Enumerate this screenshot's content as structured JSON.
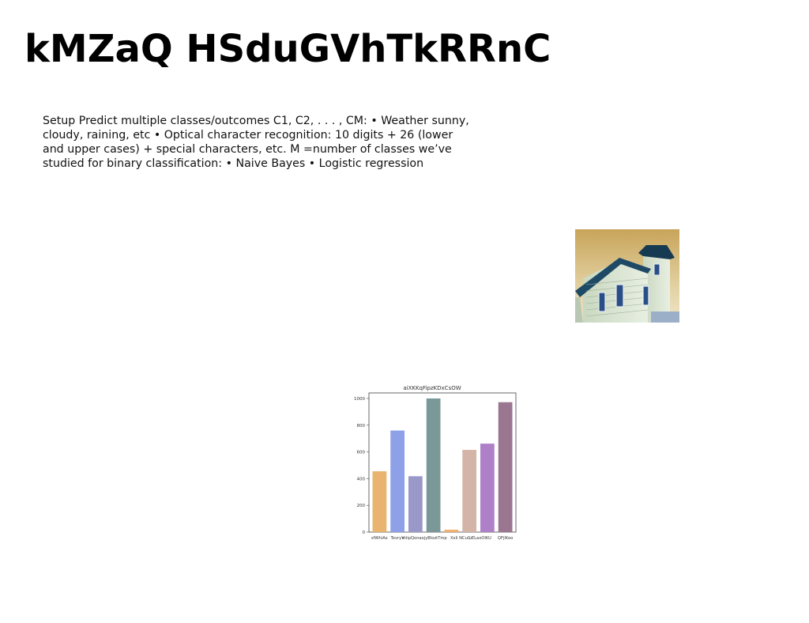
{
  "slide": {
    "title": "kMZaQ HSduGVhTkRRnC",
    "body": "Setup Predict multiple classes/outcomes C1, C2, . . . , CM: • Weather sunny, cloudy, raining, etc • Optical character recognition: 10 digits + 26 (lower and upper cases) + special characters, etc. M =number of classes we’ve studied for binary classification: • Naive Bayes • Logistic regression"
  },
  "photo": {
    "subject": "house-photo"
  },
  "chart_data": {
    "type": "bar",
    "title": "aiXKKqFipzKDxCsOW",
    "xlabel": "",
    "ylabel": "",
    "categories": [
      "sfWhiAx",
      "TovryV",
      "mlipQonaxjyBlozt",
      "tTmp Xxli NCuC",
      "ueLaxOIKU",
      "QFjlKoo",
      "",
      ""
    ],
    "category_labels_shown": [
      "sfWhiAx",
      "TovryV",
      "mlipQonaxjyBloztTmp",
      "Xxli NCuC",
      "uELaxOIKU",
      "QFjlKoo"
    ],
    "series": [
      {
        "values": [
          455,
          760,
          418,
          1000,
          18,
          615,
          662,
          972
        ]
      }
    ],
    "colors": [
      "#e8b46f",
      "#8da0e8",
      "#9a98c8",
      "#7b9898",
      "#f0b070",
      "#d4b4a6",
      "#ad80c8",
      "#9a7690"
    ],
    "ylim": [
      0,
      1000
    ],
    "yticks": [
      0,
      200,
      400,
      600,
      800,
      1000
    ],
    "grid": false
  }
}
